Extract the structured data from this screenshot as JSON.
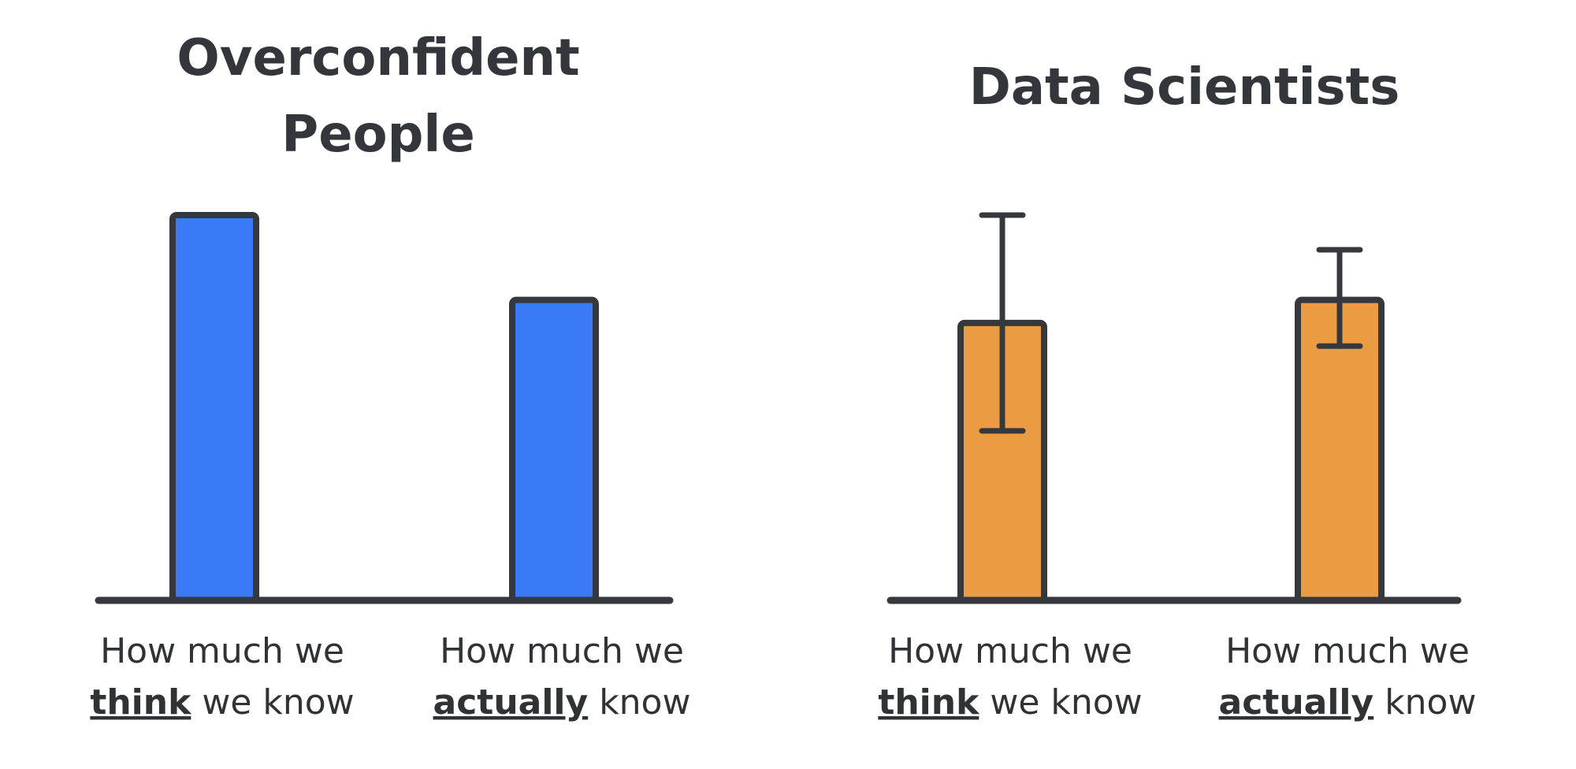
{
  "chart_data": [
    {
      "type": "bar",
      "title_lines": [
        "Overconfident",
        "People"
      ],
      "categories": [
        {
          "line1": "How much we",
          "emph": "think",
          "rest": " we know"
        },
        {
          "line1": "How much we",
          "emph": "actually",
          "rest": " know"
        }
      ],
      "values": [
        100,
        78
      ],
      "error_bars": null,
      "ylim": [
        0,
        100
      ],
      "color": "#3a7af7"
    },
    {
      "type": "bar",
      "title_lines": [
        "Data Scientists"
      ],
      "categories": [
        {
          "line1": "How much we",
          "emph": "think",
          "rest": " we know"
        },
        {
          "line1": "How much we",
          "emph": "actually",
          "rest": " know"
        }
      ],
      "values": [
        72,
        78
      ],
      "error_bars": [
        [
          44,
          100
        ],
        [
          66,
          91
        ]
      ],
      "ylim": [
        0,
        100
      ],
      "color": "#eb9c42"
    }
  ],
  "colors": {
    "outline": "#35393d",
    "text": "#2f3336"
  }
}
